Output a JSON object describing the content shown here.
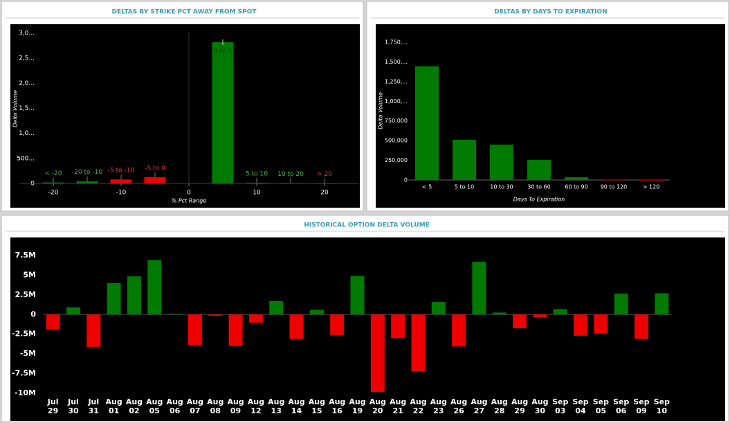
{
  "chart_data": [
    {
      "type": "bar",
      "title": "DELTAS BY STRIKE PCT AWAY FROM SPOT",
      "xlabel": "% Pct Range",
      "ylabel": "Delta Volume",
      "categories": [
        "< -20",
        "-20 to -10",
        "-5 to -10",
        "-5 to 0",
        "0 to 5",
        "5 to 10",
        "10 to 20",
        "> 20"
      ],
      "x": [
        -20,
        -15,
        -10,
        -5,
        5,
        10,
        15,
        20
      ],
      "values": [
        20000,
        45000,
        80000,
        125000,
        2820000,
        15000,
        10000,
        5000
      ],
      "colors": [
        "#007a00",
        "#007a00",
        "#ee0000",
        "#ee0000",
        "#007a00",
        "#007a00",
        "#007a00",
        "#ee0000"
      ],
      "label_colors": [
        "#3cbf3c",
        "#3cbf3c",
        "#ff3030",
        "#ff3030",
        "#0b3d0b",
        "#3cbf3c",
        "#3cbf3c",
        "#ff3030"
      ],
      "xlim": [
        -25,
        25
      ],
      "xticks": [
        -20,
        -10,
        0,
        10,
        20
      ],
      "ylim": [
        0,
        3000000
      ],
      "yticks": [
        0,
        {
          "value": 500000,
          "label": "500..."
        },
        {
          "value": 1000000,
          "label": "1,0..."
        },
        {
          "value": 1500000,
          "label": "1,5..."
        },
        {
          "value": 2000000,
          "label": "2,0..."
        },
        {
          "value": 2500000,
          "label": "2,5..."
        },
        {
          "value": 3000000,
          "label": "3,0..."
        }
      ]
    },
    {
      "type": "bar",
      "title": "DELTAS BY DAYS TO EXPIRATION",
      "xlabel": "Days To Expiration",
      "ylabel": "Delta Volume",
      "categories": [
        "< 5",
        "5 to 10",
        "10 to 30",
        "30 to 60",
        "60 to 90",
        "90 to 120",
        "> 120"
      ],
      "values": [
        1445000,
        510000,
        450000,
        255000,
        35000,
        5000,
        3000
      ],
      "colors": [
        "#007a00",
        "#007a00",
        "#007a00",
        "#007a00",
        "#007a00",
        "#ee0000",
        "#ee0000"
      ],
      "ylim": [
        0,
        1750000
      ],
      "yticks": [
        0,
        {
          "value": 250000,
          "label": "250,000"
        },
        {
          "value": 500000,
          "label": "500,000"
        },
        {
          "value": 750000,
          "label": "750,000"
        },
        {
          "value": 1000000,
          "label": "1,000,..."
        },
        {
          "value": 1250000,
          "label": "1,250,..."
        },
        {
          "value": 1500000,
          "label": "1,500,..."
        },
        {
          "value": 1750000,
          "label": "1,750,..."
        }
      ]
    },
    {
      "type": "bar",
      "title": "HISTORICAL OPTION DELTA VOLUME",
      "categories": [
        "Jul 29",
        "Jul 30",
        "Jul 31",
        "Aug 01",
        "Aug 02",
        "Aug 05",
        "Aug 06",
        "Aug 07",
        "Aug 08",
        "Aug 09",
        "Aug 12",
        "Aug 13",
        "Aug 14",
        "Aug 15",
        "Aug 16",
        "Aug 19",
        "Aug 20",
        "Aug 21",
        "Aug 22",
        "Aug 23",
        "Aug 26",
        "Aug 27",
        "Aug 28",
        "Aug 29",
        "Aug 30",
        "Sep 03",
        "Sep 04",
        "Sep 05",
        "Sep 06",
        "Sep 09",
        "Sep 10"
      ],
      "values": [
        -1900000,
        900000,
        -4100000,
        4000000,
        4850000,
        6900000,
        100000,
        -3900000,
        -150000,
        -4000000,
        -1050000,
        1700000,
        -3100000,
        600000,
        -2600000,
        4900000,
        -9850000,
        -3000000,
        -7200000,
        1600000,
        -4050000,
        6700000,
        250000,
        -1750000,
        -350000,
        700000,
        -2700000,
        -2400000,
        2650000,
        -3100000,
        2700000
      ],
      "positive_color": "#007a00",
      "negative_color": "#ee0000",
      "ylim": [
        -10000000,
        7500000
      ],
      "yticks": [
        {
          "value": -10000000,
          "label": "-10M"
        },
        {
          "value": -7500000,
          "label": "-7.5M"
        },
        {
          "value": -5000000,
          "label": "-5M"
        },
        {
          "value": -2500000,
          "label": "-2.5M"
        },
        0,
        {
          "value": 2500000,
          "label": "2.5M"
        },
        {
          "value": 5000000,
          "label": "5M"
        },
        {
          "value": 7500000,
          "label": "7.5M"
        }
      ]
    }
  ]
}
